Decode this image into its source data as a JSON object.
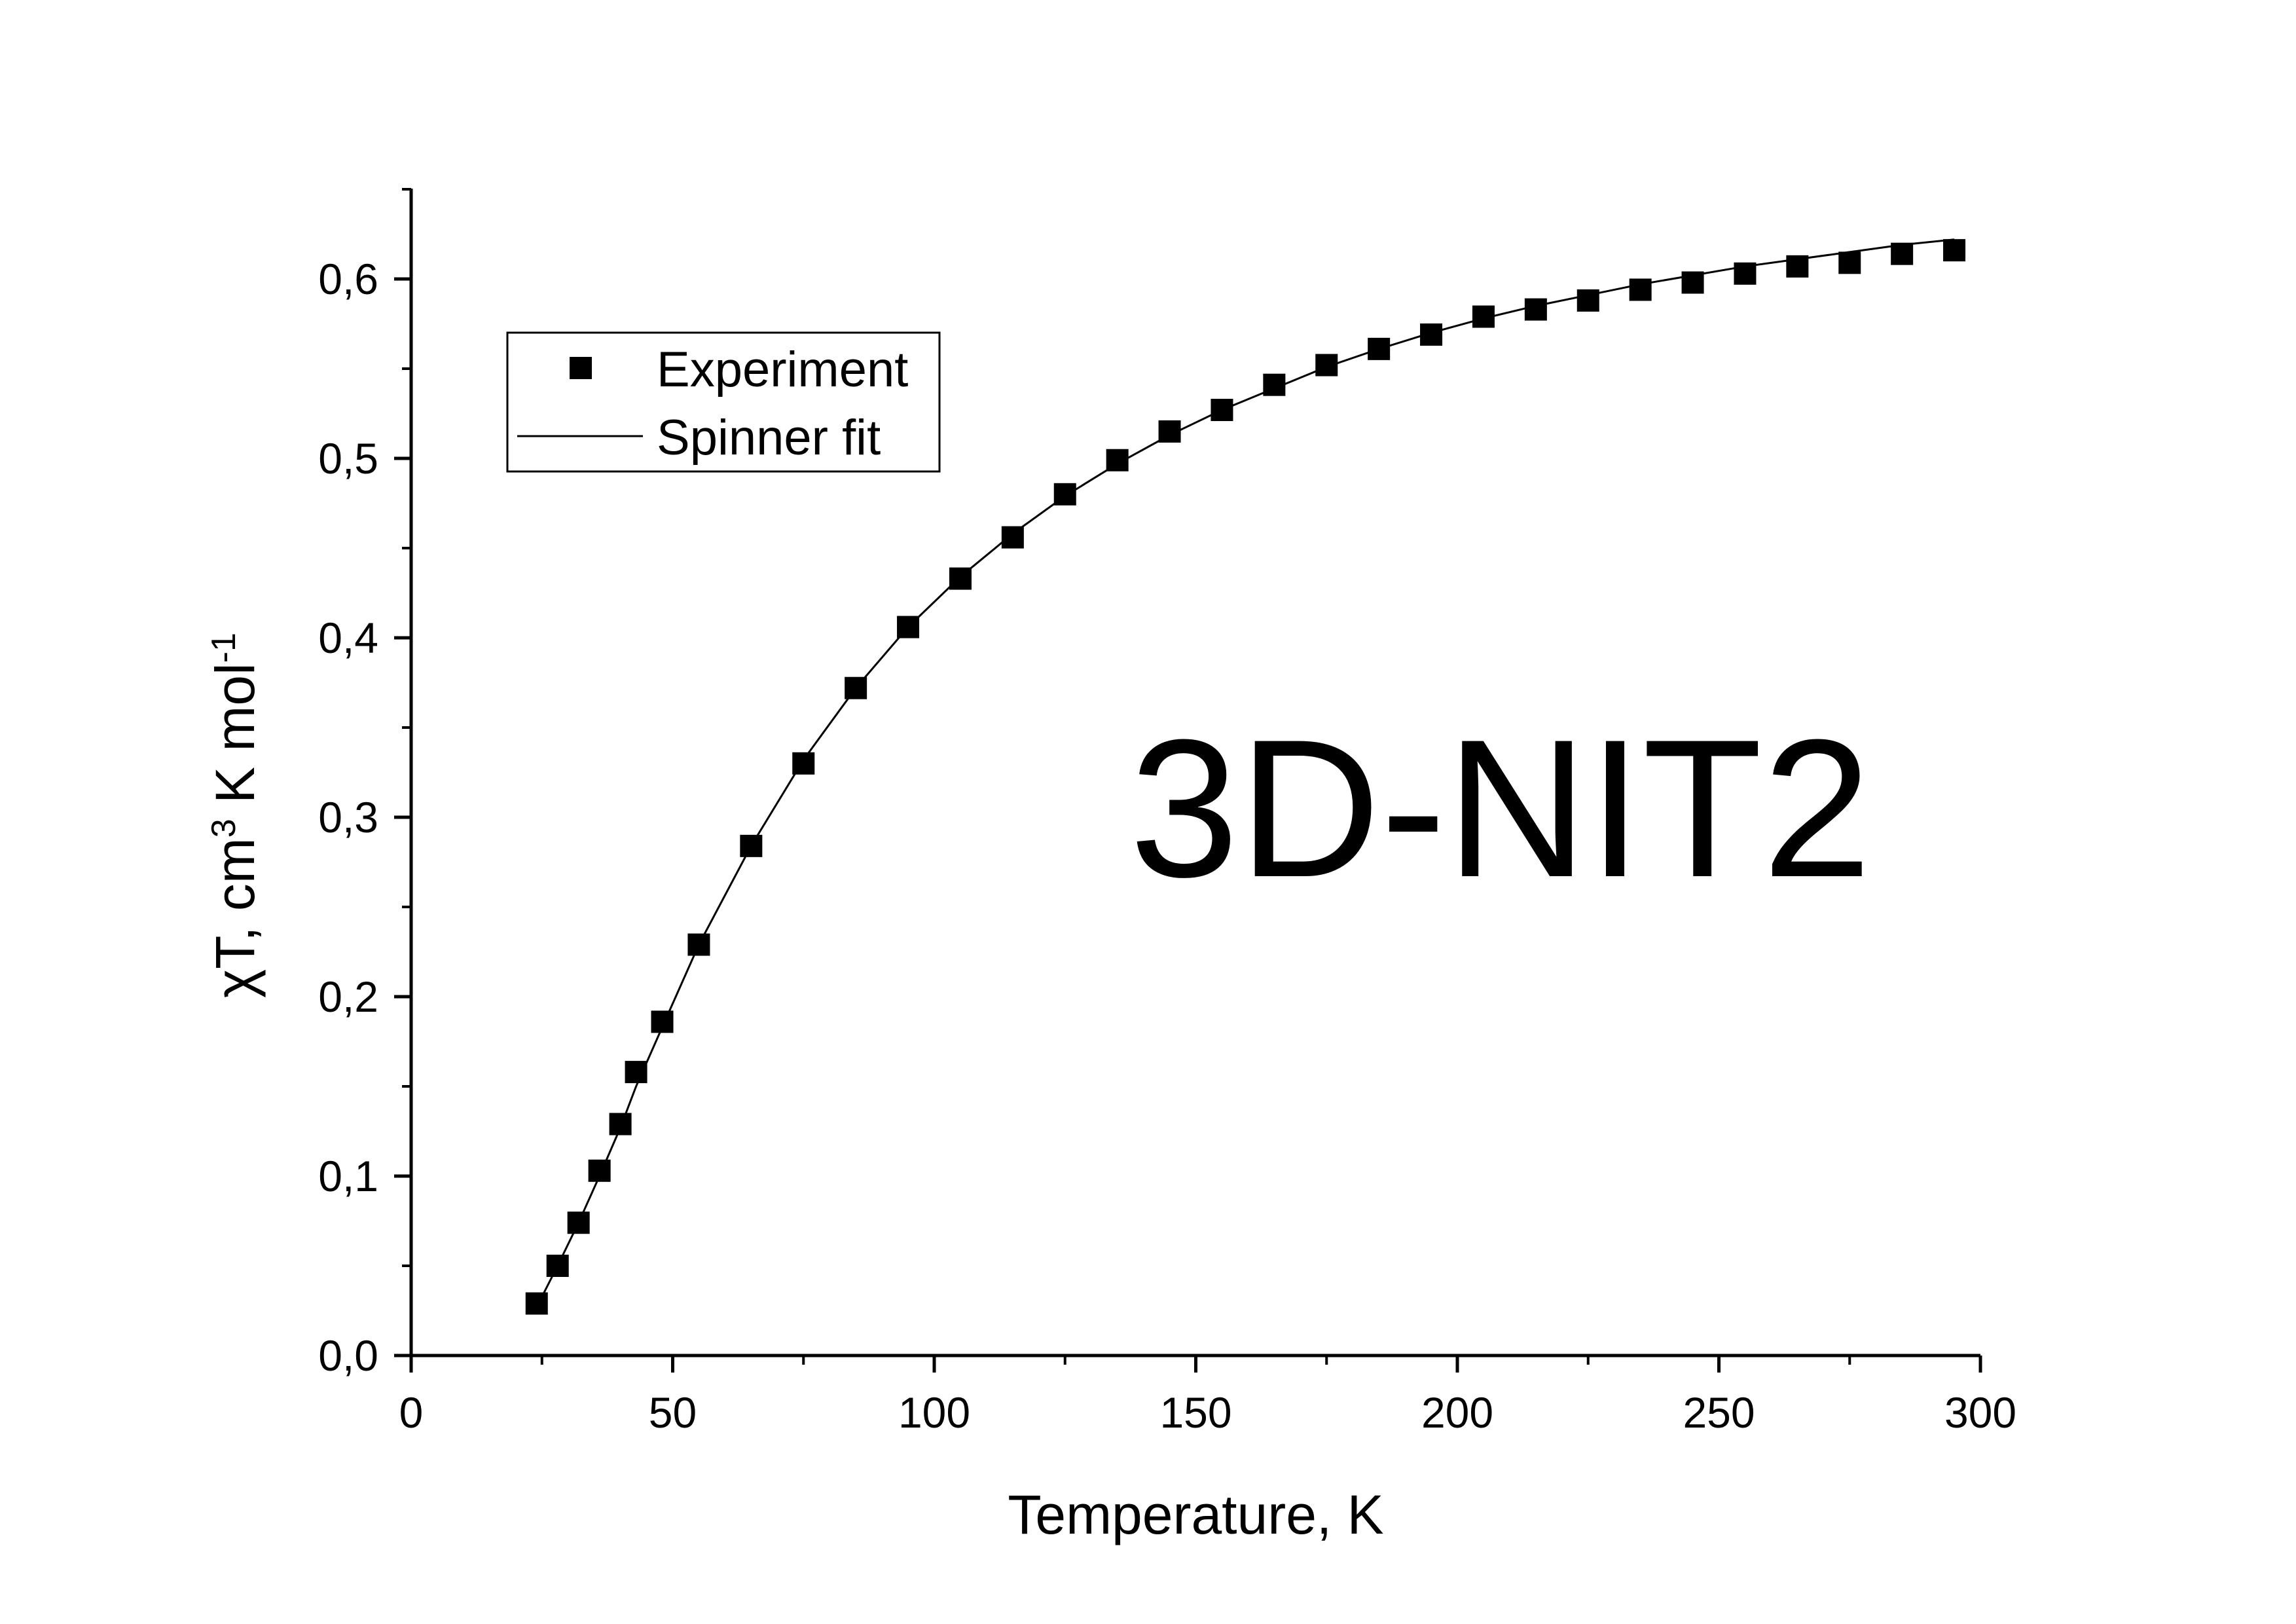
{
  "chart_data": {
    "type": "scatter",
    "xlabel": "Temperature, K",
    "ylabel_parts": {
      "pre": "χT, cm",
      "sup1": "3",
      "mid": " K mol",
      "sup2": "-1"
    },
    "annotation": "3D-NIT2",
    "xlim": [
      0,
      300
    ],
    "ylim": [
      0,
      0.65
    ],
    "x_ticks": [
      0,
      50,
      100,
      150,
      200,
      250,
      300
    ],
    "x_tick_labels": [
      "0",
      "50",
      "100",
      "150",
      "200",
      "250",
      "300"
    ],
    "y_ticks": [
      0,
      0.1,
      0.2,
      0.3,
      0.4,
      0.5,
      0.6
    ],
    "y_tick_labels": [
      "0,0",
      "0,1",
      "0,2",
      "0,3",
      "0,4",
      "0,5",
      "0,6"
    ],
    "grid": false,
    "legend_position": "top-left",
    "series": [
      {
        "name": "Experiment",
        "marker": "square",
        "color": "#000000",
        "x": [
          24,
          28,
          32,
          36,
          40,
          43,
          48,
          55,
          65,
          75,
          85,
          95,
          105,
          115,
          125,
          135,
          145,
          155,
          165,
          175,
          185,
          195,
          205,
          215,
          225,
          235,
          245,
          255,
          265,
          275,
          285,
          295
        ],
        "y": [
          0.029,
          0.05,
          0.074,
          0.103,
          0.129,
          0.158,
          0.186,
          0.229,
          0.284,
          0.33,
          0.372,
          0.406,
          0.433,
          0.456,
          0.48,
          0.499,
          0.515,
          0.527,
          0.541,
          0.552,
          0.561,
          0.569,
          0.579,
          0.583,
          0.588,
          0.594,
          0.598,
          0.603,
          0.607,
          0.609,
          0.614,
          0.616
        ]
      },
      {
        "name": "Spinner fit",
        "style": "line",
        "color": "#000000",
        "x": [
          24,
          28,
          32,
          36,
          40,
          43,
          48,
          55,
          65,
          75,
          85,
          95,
          105,
          115,
          125,
          135,
          145,
          155,
          165,
          175,
          185,
          195,
          205,
          215,
          225,
          235,
          245,
          255,
          265,
          275,
          285,
          295
        ],
        "y": [
          0.027,
          0.05,
          0.074,
          0.1,
          0.127,
          0.15,
          0.183,
          0.229,
          0.284,
          0.332,
          0.372,
          0.406,
          0.434,
          0.458,
          0.479,
          0.497,
          0.513,
          0.527,
          0.539,
          0.551,
          0.561,
          0.57,
          0.578,
          0.585,
          0.591,
          0.597,
          0.602,
          0.607,
          0.611,
          0.615,
          0.619,
          0.622
        ]
      }
    ]
  }
}
